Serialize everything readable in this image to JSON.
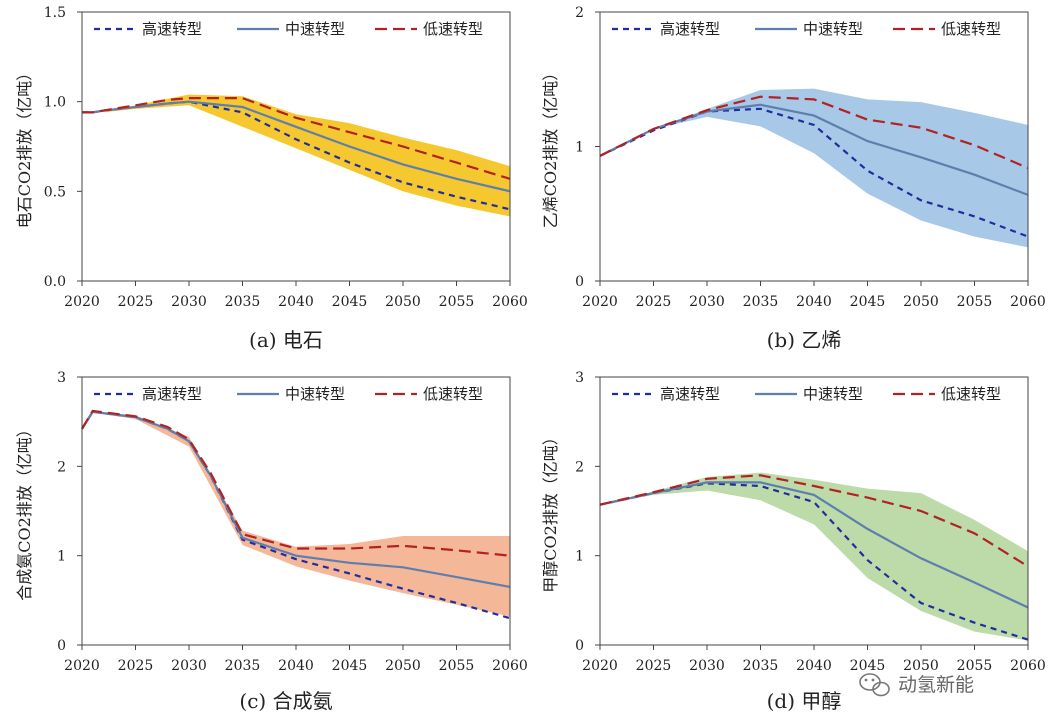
{
  "legend": {
    "high": "高速转型",
    "mid": "中速转型",
    "low": "低速转型"
  },
  "colors": {
    "high": "#1f2d9e",
    "mid": "#5e7fae",
    "low": "#b22222"
  },
  "watermark": "动氢新能",
  "chart_data": [
    {
      "type": "line",
      "caption": "(a) 电石",
      "ylabel": "电石CO2排放（亿吨）",
      "xlim": [
        2020,
        2060
      ],
      "ylim": [
        0,
        1.5
      ],
      "xticks": [
        "2020",
        "2025",
        "2030",
        "2035",
        "2040",
        "2045",
        "2050",
        "2055",
        "2060"
      ],
      "yticks": [
        "0.0",
        "0.5",
        "1.0",
        "1.5"
      ],
      "band_color": "#f6c82f",
      "band": {
        "x": [
          2020,
          2022,
          2025,
          2030,
          2035,
          2040,
          2045,
          2050,
          2055,
          2060
        ],
        "lower": [
          0.94,
          0.94,
          0.96,
          0.98,
          0.86,
          0.74,
          0.62,
          0.5,
          0.42,
          0.36
        ],
        "upper": [
          0.94,
          0.94,
          0.98,
          1.04,
          1.03,
          0.93,
          0.88,
          0.8,
          0.73,
          0.64
        ]
      },
      "series": [
        {
          "name": "高速转型",
          "x": [
            2020,
            2021,
            2022,
            2025,
            2028,
            2030,
            2035,
            2040,
            2045,
            2050,
            2055,
            2060
          ],
          "y": [
            0.94,
            0.94,
            0.95,
            0.97,
            0.99,
            1.0,
            0.94,
            0.79,
            0.66,
            0.55,
            0.47,
            0.4
          ]
        },
        {
          "name": "中速转型",
          "x": [
            2020,
            2021,
            2022,
            2025,
            2028,
            2030,
            2035,
            2040,
            2045,
            2050,
            2055,
            2060
          ],
          "y": [
            0.94,
            0.94,
            0.95,
            0.97,
            0.99,
            1.0,
            0.97,
            0.86,
            0.75,
            0.65,
            0.57,
            0.5
          ]
        },
        {
          "name": "低速转型",
          "x": [
            2020,
            2021,
            2022,
            2025,
            2028,
            2030,
            2035,
            2040,
            2045,
            2050,
            2055,
            2060
          ],
          "y": [
            0.94,
            0.94,
            0.95,
            0.98,
            1.01,
            1.02,
            1.02,
            0.91,
            0.83,
            0.75,
            0.66,
            0.57
          ]
        }
      ]
    },
    {
      "type": "line",
      "caption": "(b) 乙烯",
      "ylabel": "乙烯CO2排放（亿吨）",
      "xlim": [
        2020,
        2060
      ],
      "ylim": [
        0,
        2
      ],
      "xticks": [
        "2020",
        "2025",
        "2030",
        "2035",
        "2040",
        "2045",
        "2050",
        "2055",
        "2060"
      ],
      "yticks": [
        "0",
        "1",
        "2"
      ],
      "band_color": "#a8c8e8",
      "band": {
        "x": [
          2020,
          2025,
          2030,
          2035,
          2040,
          2045,
          2050,
          2055,
          2060
        ],
        "lower": [
          0.93,
          1.13,
          1.22,
          1.15,
          0.95,
          0.65,
          0.45,
          0.33,
          0.25
        ],
        "upper": [
          0.93,
          1.13,
          1.28,
          1.42,
          1.43,
          1.35,
          1.33,
          1.25,
          1.16
        ]
      },
      "series": [
        {
          "name": "高速转型",
          "x": [
            2020,
            2025,
            2030,
            2035,
            2040,
            2045,
            2050,
            2055,
            2060
          ],
          "y": [
            0.93,
            1.12,
            1.26,
            1.28,
            1.16,
            0.82,
            0.6,
            0.48,
            0.33
          ]
        },
        {
          "name": "中速转型",
          "x": [
            2020,
            2025,
            2030,
            2035,
            2040,
            2045,
            2050,
            2055,
            2060
          ],
          "y": [
            0.93,
            1.13,
            1.26,
            1.31,
            1.23,
            1.04,
            0.92,
            0.79,
            0.64
          ]
        },
        {
          "name": "低速转型",
          "x": [
            2020,
            2025,
            2030,
            2035,
            2040,
            2045,
            2050,
            2055,
            2060
          ],
          "y": [
            0.93,
            1.13,
            1.27,
            1.37,
            1.35,
            1.2,
            1.14,
            1.01,
            0.84
          ]
        }
      ]
    },
    {
      "type": "line",
      "caption": "(c) 合成氨",
      "ylabel": "合成氨CO2排放（亿吨）",
      "xlim": [
        2020,
        2060
      ],
      "ylim": [
        0,
        3
      ],
      "xticks": [
        "2020",
        "2025",
        "2030",
        "2035",
        "2040",
        "2045",
        "2050",
        "2055",
        "2060"
      ],
      "yticks": [
        "0",
        "1",
        "2",
        "3"
      ],
      "band_color": "#f4b899",
      "band": {
        "x": [
          2020,
          2021,
          2025,
          2030,
          2035,
          2040,
          2045,
          2050,
          2055,
          2060
        ],
        "lower": [
          2.42,
          2.6,
          2.53,
          2.22,
          1.12,
          0.88,
          0.72,
          0.58,
          0.45,
          0.32
        ],
        "upper": [
          2.42,
          2.62,
          2.57,
          2.33,
          1.28,
          1.1,
          1.13,
          1.22,
          1.22,
          1.22
        ]
      },
      "series": [
        {
          "name": "高速转型",
          "x": [
            2020,
            2021,
            2025,
            2028,
            2030,
            2032,
            2035,
            2040,
            2045,
            2050,
            2055,
            2060
          ],
          "y": [
            2.42,
            2.61,
            2.55,
            2.42,
            2.28,
            1.9,
            1.18,
            0.96,
            0.8,
            0.63,
            0.47,
            0.3
          ]
        },
        {
          "name": "中速转型",
          "x": [
            2020,
            2021,
            2025,
            2028,
            2030,
            2032,
            2035,
            2040,
            2045,
            2050,
            2055,
            2060
          ],
          "y": [
            2.42,
            2.61,
            2.55,
            2.42,
            2.28,
            1.9,
            1.2,
            1.0,
            0.92,
            0.87,
            0.76,
            0.65
          ]
        },
        {
          "name": "低速转型",
          "x": [
            2020,
            2021,
            2025,
            2028,
            2030,
            2032,
            2035,
            2040,
            2045,
            2050,
            2055,
            2060
          ],
          "y": [
            2.42,
            2.62,
            2.56,
            2.44,
            2.3,
            1.93,
            1.24,
            1.08,
            1.08,
            1.11,
            1.06,
            1.0
          ]
        }
      ]
    },
    {
      "type": "line",
      "caption": "(d) 甲醇",
      "ylabel": "甲醇CO2排放（亿吨）",
      "xlim": [
        2020,
        2060
      ],
      "ylim": [
        0,
        3
      ],
      "xticks": [
        "2020",
        "2025",
        "2030",
        "2035",
        "2040",
        "2045",
        "2050",
        "2055",
        "2060"
      ],
      "yticks": [
        "0",
        "1",
        "2",
        "3"
      ],
      "band_color": "#bcdba8",
      "band": {
        "x": [
          2020,
          2025,
          2030,
          2035,
          2040,
          2045,
          2050,
          2055,
          2060
        ],
        "lower": [
          1.57,
          1.68,
          1.73,
          1.62,
          1.35,
          0.75,
          0.38,
          0.15,
          0.05
        ],
        "upper": [
          1.57,
          1.72,
          1.88,
          1.93,
          1.85,
          1.75,
          1.7,
          1.4,
          1.05
        ]
      },
      "series": [
        {
          "name": "高速转型",
          "x": [
            2020,
            2025,
            2030,
            2035,
            2040,
            2045,
            2050,
            2055,
            2060
          ],
          "y": [
            1.57,
            1.7,
            1.81,
            1.78,
            1.6,
            0.95,
            0.47,
            0.25,
            0.06
          ]
        },
        {
          "name": "中速转型",
          "x": [
            2020,
            2025,
            2030,
            2035,
            2040,
            2045,
            2050,
            2055,
            2060
          ],
          "y": [
            1.57,
            1.7,
            1.82,
            1.82,
            1.68,
            1.3,
            0.97,
            0.7,
            0.42
          ]
        },
        {
          "name": "低速转型",
          "x": [
            2020,
            2025,
            2030,
            2035,
            2040,
            2045,
            2050,
            2055,
            2060
          ],
          "y": [
            1.57,
            1.71,
            1.86,
            1.9,
            1.78,
            1.65,
            1.5,
            1.25,
            0.88
          ]
        }
      ]
    }
  ]
}
